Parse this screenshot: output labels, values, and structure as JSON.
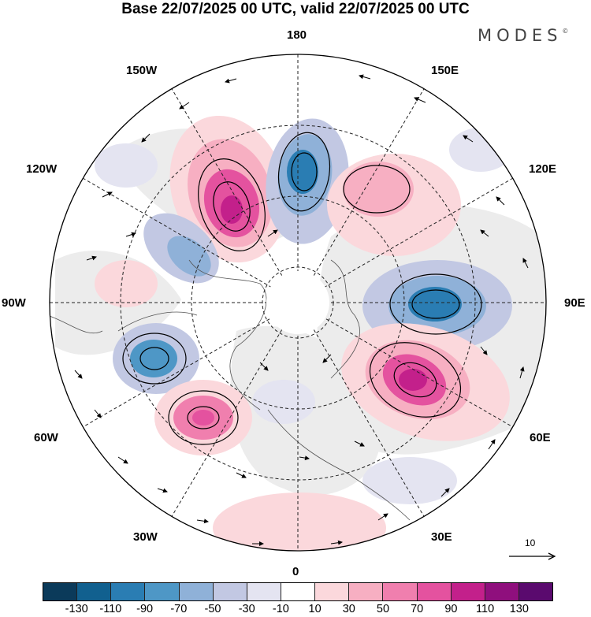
{
  "title": "Base 22/07/2025 00 UTC, valid 22/07/2025 00 UTC",
  "brand": "MODES",
  "brand_mark": "©",
  "longitude_labels": {
    "l180": "180",
    "l150w": "150W",
    "l150e": "150E",
    "l120w": "120W",
    "l120e": "120E",
    "l90w": "90W",
    "l90e": "90E",
    "l60w": "60W",
    "l60e": "60E",
    "l30w": "30W",
    "l30e": "30E",
    "l0": "0"
  },
  "reference_vector": {
    "label": "10"
  },
  "colorbar": {
    "colors": [
      "#0b3a5a",
      "#11608f",
      "#2a7db3",
      "#4e97c6",
      "#8fb1d8",
      "#c2c8e3",
      "#e4e4f1",
      "#ffffff",
      "#fbd8dc",
      "#f7afc2",
      "#f07fae",
      "#e4529f",
      "#c3208b",
      "#8f0f7d",
      "#5a0a6e"
    ],
    "ticks": [
      "-130",
      "-110",
      "-90",
      "-70",
      "-50",
      "-30",
      "-10",
      "10",
      "30",
      "50",
      "70",
      "90",
      "110",
      "130"
    ]
  }
}
